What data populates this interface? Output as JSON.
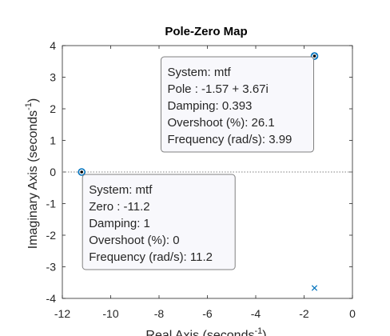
{
  "chart_data": {
    "type": "scatter",
    "title": "Pole-Zero Map",
    "xlabel": "Real Axis (seconds",
    "ylabel": "Imaginary Axis (seconds",
    "label_exponent": "-1",
    "label_close": ")",
    "xlim": [
      -12,
      0
    ],
    "ylim": [
      -4,
      4
    ],
    "xticks": [
      -12,
      -10,
      -8,
      -6,
      -4,
      -2,
      0
    ],
    "yticks": [
      -4,
      -3,
      -2,
      -1,
      0,
      1,
      2,
      3,
      4
    ],
    "tick_labels_x": [
      "-12",
      "-10",
      "-8",
      "-6",
      "-4",
      "-2",
      "0"
    ],
    "tick_labels_y": [
      "-4",
      "-3",
      "-2",
      "-1",
      "0",
      "1",
      "2",
      "3",
      "4"
    ],
    "grid": false,
    "colors": {
      "marker": "#0072BD",
      "zero_line": "#808080",
      "datatip_fill": "#f8f8fc",
      "datatip_border": "#808080"
    },
    "poles": [
      {
        "re": -1.57,
        "im": 3.67
      },
      {
        "re": -1.57,
        "im": -3.67
      }
    ],
    "zeros": [
      {
        "re": -11.2,
        "im": 0
      },
      {
        "re": -1.57,
        "im": 3.67
      }
    ],
    "datatips": [
      {
        "target": {
          "re": -1.57,
          "im": 3.67
        },
        "lines": [
          "System: mtf",
          "Pole : -1.57 + 3.67i",
          "Damping: 0.393",
          "Overshoot (%): 26.1",
          "Frequency (rad/s): 3.99"
        ]
      },
      {
        "target": {
          "re": -11.2,
          "im": 0
        },
        "lines": [
          "System: mtf",
          "Zero : -11.2",
          "Damping: 1",
          "Overshoot (%): 0",
          "Frequency (rad/s): 11.2"
        ]
      }
    ]
  }
}
